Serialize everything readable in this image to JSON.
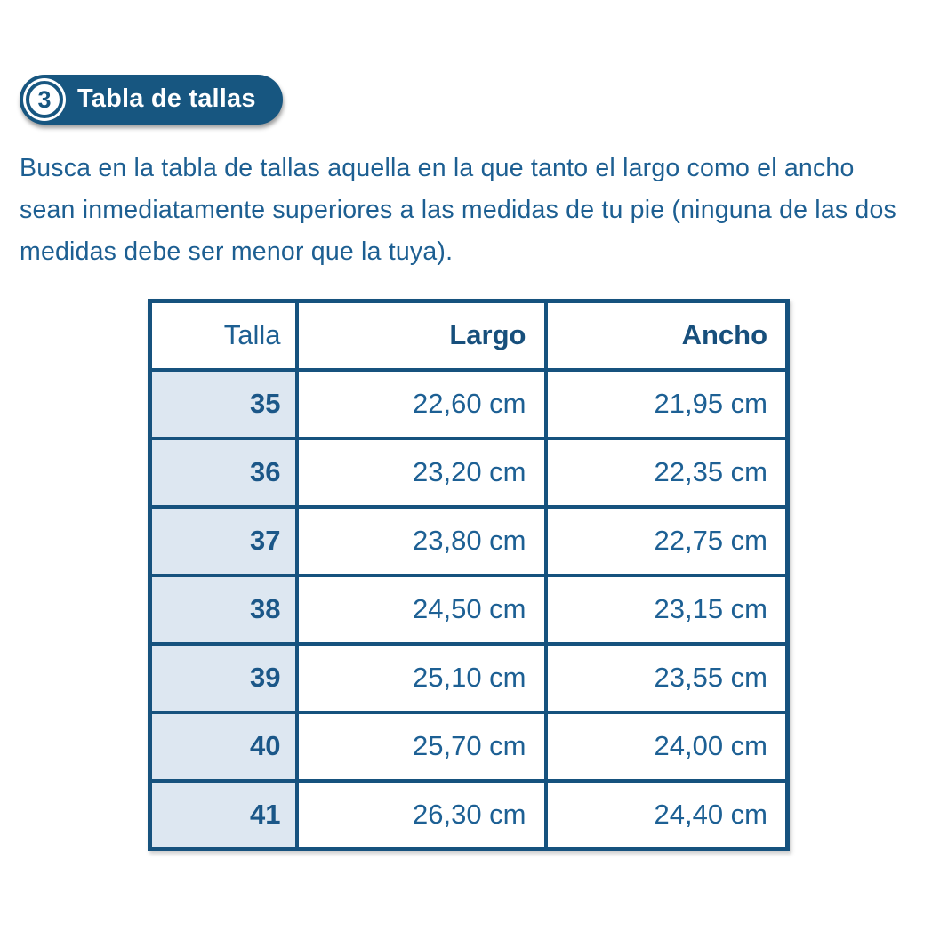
{
  "badge": {
    "number": "3",
    "label": "Tabla de tallas"
  },
  "intro": {
    "text": "Busca en la tabla de tallas aquella en la que tanto el largo como el ancho sean inmediatamente superiores a las medidas de tu pie (ninguna de las dos medidas debe ser menor que la tuya)."
  },
  "table": {
    "headers": [
      "Talla",
      "Largo",
      "Ancho"
    ],
    "rows": [
      {
        "talla": "35",
        "largo": "22,60 cm",
        "ancho": "21,95 cm"
      },
      {
        "talla": "36",
        "largo": "23,20 cm",
        "ancho": "22,35 cm"
      },
      {
        "talla": "37",
        "largo": "23,80 cm",
        "ancho": "22,75 cm"
      },
      {
        "talla": "38",
        "largo": "24,50 cm",
        "ancho": "23,15 cm"
      },
      {
        "talla": "39",
        "largo": "25,10 cm",
        "ancho": "23,55 cm"
      },
      {
        "talla": "40",
        "largo": "25,70 cm",
        "ancho": "24,00 cm"
      },
      {
        "talla": "41",
        "largo": "26,30 cm",
        "ancho": "24,40 cm"
      }
    ]
  },
  "colors": {
    "brand_blue": "#175680",
    "border_blue": "#16527e",
    "text_blue": "#1d5f92",
    "talla_cell_bg": "#dde7f1",
    "badge_text": "#ffffff",
    "page_bg": "#ffffff"
  }
}
